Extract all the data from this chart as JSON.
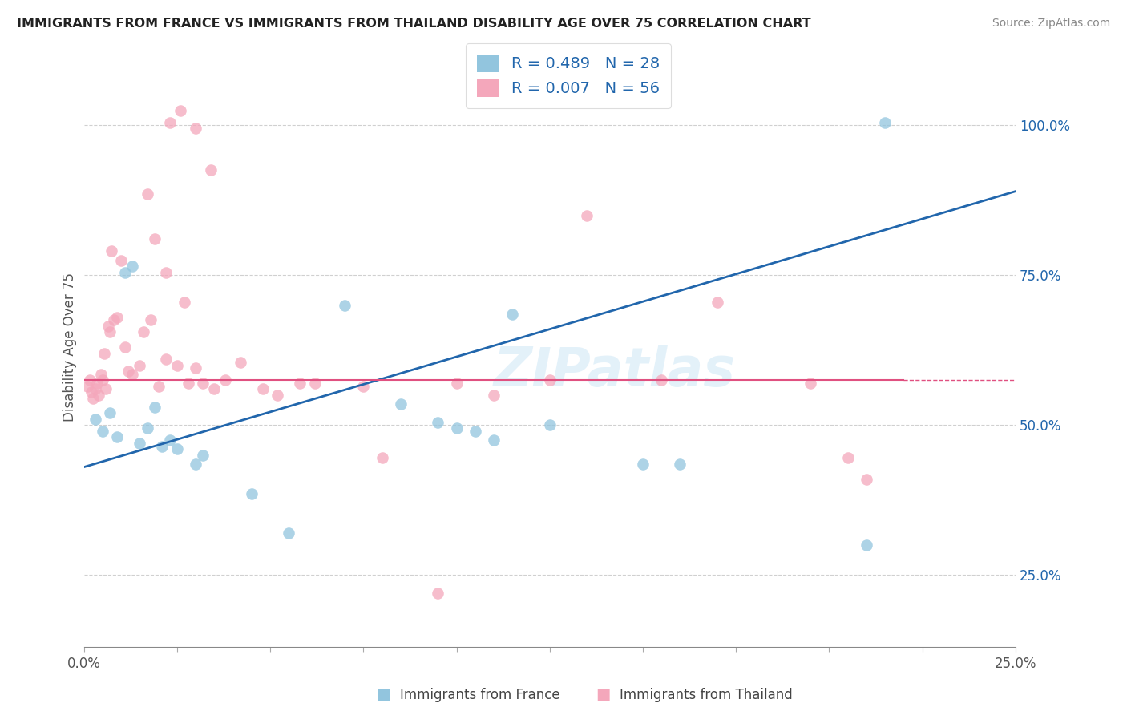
{
  "title": "IMMIGRANTS FROM FRANCE VS IMMIGRANTS FROM THAILAND DISABILITY AGE OVER 75 CORRELATION CHART",
  "source": "Source: ZipAtlas.com",
  "ylabel": "Disability Age Over 75",
  "x_label_blue": "Immigrants from France",
  "x_label_pink": "Immigrants from Thailand",
  "x_tick_labels": [
    "0.0%",
    "",
    "",
    "",
    "",
    "",
    "",
    "",
    "",
    "",
    "25.0%"
  ],
  "x_tick_values": [
    0.0,
    2.5,
    5.0,
    7.5,
    10.0,
    12.5,
    15.0,
    17.5,
    20.0,
    22.5,
    25.0
  ],
  "x_tick_major_labels": [
    "0.0%",
    "25.0%"
  ],
  "x_tick_major_values": [
    0.0,
    25.0
  ],
  "y_tick_labels": [
    "25.0%",
    "50.0%",
    "75.0%",
    "100.0%"
  ],
  "y_tick_values": [
    25.0,
    50.0,
    75.0,
    100.0
  ],
  "xlim": [
    0.0,
    25.0
  ],
  "ylim": [
    13.0,
    113.0
  ],
  "legend_blue_r": "R = 0.489",
  "legend_blue_n": "N = 28",
  "legend_pink_r": "R = 0.007",
  "legend_pink_n": "N = 56",
  "blue_color": "#92c5de",
  "pink_color": "#f4a7bb",
  "trend_blue_color": "#2166ac",
  "trend_pink_color": "#e05080",
  "blue_scatter_x": [
    0.3,
    0.5,
    0.7,
    0.9,
    1.1,
    1.3,
    1.5,
    1.7,
    1.9,
    2.1,
    2.3,
    2.5,
    3.0,
    3.2,
    4.5,
    5.5,
    7.0,
    8.5,
    9.5,
    10.0,
    10.5,
    11.0,
    11.5,
    12.5,
    15.0,
    16.0,
    21.0,
    21.5
  ],
  "blue_scatter_y": [
    51.0,
    49.0,
    52.0,
    48.0,
    75.5,
    76.5,
    47.0,
    49.5,
    53.0,
    46.5,
    47.5,
    46.0,
    43.5,
    45.0,
    38.5,
    32.0,
    70.0,
    53.5,
    50.5,
    49.5,
    49.0,
    47.5,
    68.5,
    50.0,
    43.5,
    43.5,
    30.0,
    100.5
  ],
  "pink_scatter_x": [
    0.1,
    0.15,
    0.2,
    0.25,
    0.3,
    0.35,
    0.4,
    0.45,
    0.5,
    0.55,
    0.6,
    0.65,
    0.7,
    0.75,
    0.8,
    0.9,
    1.0,
    1.1,
    1.2,
    1.3,
    1.5,
    1.6,
    1.8,
    2.0,
    2.2,
    2.5,
    2.8,
    3.0,
    3.2,
    3.5,
    3.8,
    4.2,
    4.8,
    5.2,
    5.8,
    6.2,
    7.5,
    8.0,
    10.0,
    11.0,
    12.5,
    13.5,
    15.5,
    17.0,
    19.5,
    20.5,
    2.3,
    2.6,
    3.0,
    3.4,
    1.7,
    1.9,
    2.2,
    2.7,
    9.5,
    21.0
  ],
  "pink_scatter_y": [
    56.5,
    57.5,
    55.5,
    54.5,
    56.0,
    57.0,
    55.0,
    58.5,
    57.5,
    62.0,
    56.0,
    66.5,
    65.5,
    79.0,
    67.5,
    68.0,
    77.5,
    63.0,
    59.0,
    58.5,
    60.0,
    65.5,
    67.5,
    56.5,
    61.0,
    60.0,
    57.0,
    59.5,
    57.0,
    56.0,
    57.5,
    60.5,
    56.0,
    55.0,
    57.0,
    57.0,
    56.5,
    44.5,
    57.0,
    55.0,
    57.5,
    85.0,
    57.5,
    70.5,
    57.0,
    44.5,
    100.5,
    102.5,
    99.5,
    92.5,
    88.5,
    81.0,
    75.5,
    70.5,
    22.0,
    41.0
  ],
  "blue_line_x": [
    0.0,
    25.0
  ],
  "blue_line_y": [
    43.0,
    89.0
  ],
  "pink_line_y": 57.5,
  "pink_line_x_end": 22.0,
  "watermark": "ZIPatlas",
  "background_color": "#ffffff",
  "grid_color": "#d0d0d0"
}
